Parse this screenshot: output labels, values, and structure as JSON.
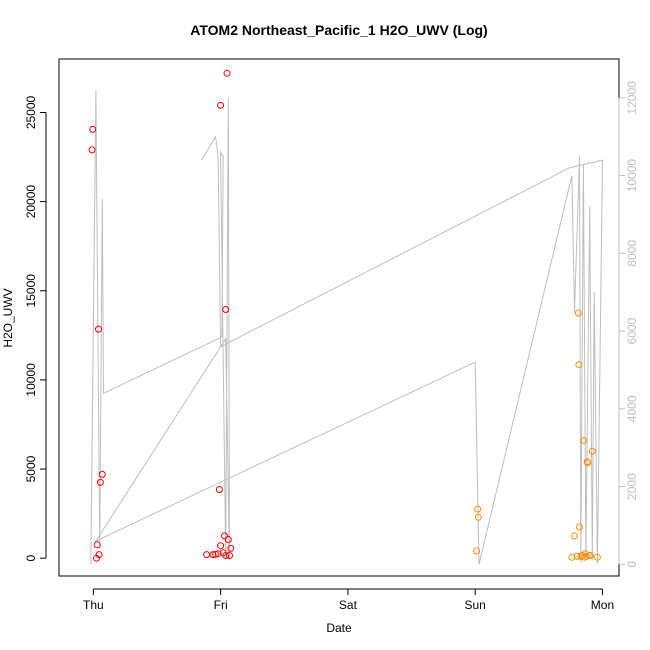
{
  "chart_data": {
    "type": "scatter",
    "title": "ATOM2 Northeast_Pacific_1 H2O_UWV (Log)",
    "xlabel": "Date",
    "ylabel": "H2O_UWV",
    "x_ticks": [
      {
        "label": "Thu",
        "day": 0
      },
      {
        "label": "Fri",
        "day": 1
      },
      {
        "label": "Sat",
        "day": 2
      },
      {
        "label": "Sun",
        "day": 3
      },
      {
        "label": "Mon",
        "day": 4
      }
    ],
    "xlim_days": [
      -0.27,
      4.13
    ],
    "ylim": [
      -1000,
      28000
    ],
    "y_ticks": [
      0,
      5000,
      10000,
      15000,
      20000,
      25000
    ],
    "y2_lim": [
      -300,
      13000
    ],
    "y2_ticks": [
      0,
      2000,
      4000,
      6000,
      8000,
      10000,
      12000
    ],
    "grid": false,
    "colors": {
      "red_series": "#ff0000",
      "orange_series": "#ff8c00",
      "line": "#bebebe",
      "axis": "#000000",
      "right_axis": "#bebebe"
    },
    "series": [
      {
        "color": "#ff0000",
        "axis": "left",
        "points": [
          {
            "day": -0.005,
            "value": 24050
          },
          {
            "day": -0.01,
            "value": 22900
          },
          {
            "day": 0.025,
            "value": 0
          },
          {
            "day": 0.03,
            "value": 750
          },
          {
            "day": 0.045,
            "value": 200
          },
          {
            "day": 0.04,
            "value": 12850
          },
          {
            "day": 0.055,
            "value": 4250
          },
          {
            "day": 0.07,
            "value": 4700
          },
          {
            "day": 0.89,
            "value": 200
          },
          {
            "day": 0.94,
            "value": 200
          },
          {
            "day": 0.96,
            "value": 220
          },
          {
            "day": 0.98,
            "value": 250
          },
          {
            "day": 0.99,
            "value": 3850
          },
          {
            "day": 1.0,
            "value": 25400
          },
          {
            "day": 1.0,
            "value": 700
          },
          {
            "day": 1.02,
            "value": 300
          },
          {
            "day": 1.03,
            "value": 1250
          },
          {
            "day": 1.04,
            "value": 13950
          },
          {
            "day": 1.04,
            "value": 150
          },
          {
            "day": 1.05,
            "value": 27200
          },
          {
            "day": 1.06,
            "value": 1050
          },
          {
            "day": 1.07,
            "value": 150
          },
          {
            "day": 1.08,
            "value": 550
          }
        ]
      },
      {
        "color": "#ff8c00",
        "axis": "left",
        "points": [
          {
            "day": 3.02,
            "value": 2750
          },
          {
            "day": 3.025,
            "value": 2300
          },
          {
            "day": 3.01,
            "value": 400
          },
          {
            "day": 3.76,
            "value": 50
          },
          {
            "day": 3.78,
            "value": 1250
          },
          {
            "day": 3.8,
            "value": 100
          },
          {
            "day": 3.81,
            "value": 13750
          },
          {
            "day": 3.815,
            "value": 10850
          },
          {
            "day": 3.82,
            "value": 1750
          },
          {
            "day": 3.83,
            "value": 100
          },
          {
            "day": 3.84,
            "value": 150
          },
          {
            "day": 3.85,
            "value": 6600
          },
          {
            "day": 3.86,
            "value": 50
          },
          {
            "day": 3.865,
            "value": 250
          },
          {
            "day": 3.875,
            "value": 100
          },
          {
            "day": 3.88,
            "value": 5400
          },
          {
            "day": 3.885,
            "value": 5350
          },
          {
            "day": 3.895,
            "value": 150
          },
          {
            "day": 3.905,
            "value": 150
          },
          {
            "day": 3.92,
            "value": 6000
          },
          {
            "day": 3.96,
            "value": 50
          }
        ]
      }
    ],
    "line": {
      "color": "#bebebe",
      "axis": "right",
      "points": [
        {
          "day": -0.02,
          "value": 0
        },
        {
          "day": 0.02,
          "value": 12200
        },
        {
          "day": 0.05,
          "value": 400
        },
        {
          "day": 0.07,
          "value": 9400
        },
        {
          "day": 0.08,
          "value": 4400
        },
        {
          "day": 1.01,
          "value": 5850
        },
        {
          "day": 1.02,
          "value": 10500
        },
        {
          "day": 1.0,
          "value": 10600
        },
        {
          "day": 1.04,
          "value": 150
        },
        {
          "day": 1.06,
          "value": 12000
        },
        {
          "day": 1.07,
          "value": 100
        },
        {
          "day": 1.04,
          "value": 5800
        },
        {
          "day": 0.02,
          "value": 600
        },
        {
          "day": 3.0,
          "value": 5200
        },
        {
          "day": 3.03,
          "value": 0
        },
        {
          "day": 3.76,
          "value": 10000
        },
        {
          "day": 3.78,
          "value": 6500
        },
        {
          "day": 3.82,
          "value": 10500
        },
        {
          "day": 3.83,
          "value": 50
        },
        {
          "day": 3.85,
          "value": 10300
        },
        {
          "day": 3.87,
          "value": 200
        },
        {
          "day": 3.9,
          "value": 9200
        },
        {
          "day": 3.92,
          "value": 100
        },
        {
          "day": 3.935,
          "value": 7000
        },
        {
          "day": 3.96,
          "value": 0
        },
        {
          "day": 4.0,
          "value": 10400
        },
        {
          "day": 3.74,
          "value": 10200
        },
        {
          "day": 1.0,
          "value": 5600
        },
        {
          "day": 0.98,
          "value": 10500
        },
        {
          "day": 0.96,
          "value": 11000
        },
        {
          "day": 0.85,
          "value": 10400
        }
      ]
    }
  }
}
